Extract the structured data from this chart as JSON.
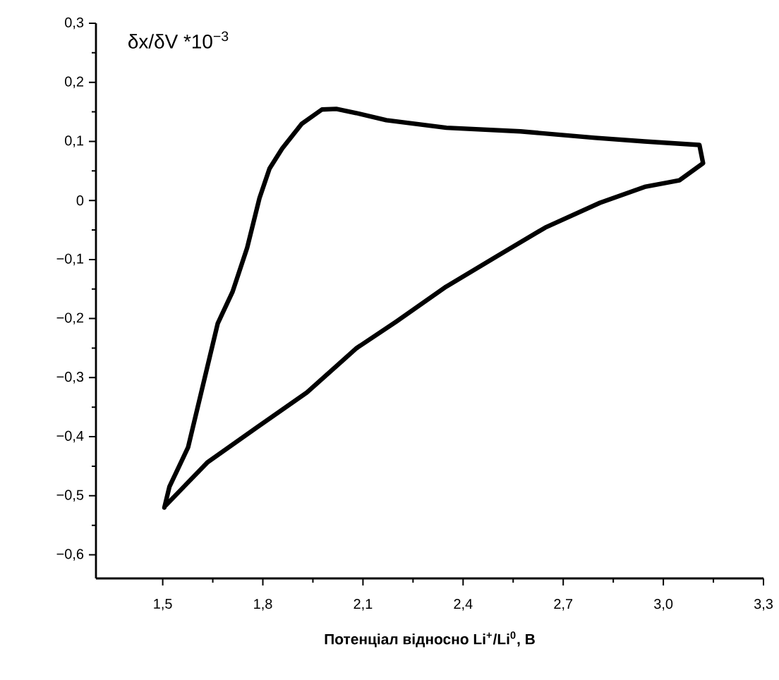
{
  "chart_data": {
    "type": "line",
    "xlabel": "Потенціал відносно Li$^{+}$/Li$^{0}$, B",
    "ylabel": "δx/δV *10$^{−3}$",
    "xlim": [
      1.3,
      3.3
    ],
    "ylim": [
      -0.64,
      0.3
    ],
    "xticks": [
      {
        "value": 1.5,
        "label": "1,5"
      },
      {
        "value": 1.8,
        "label": "1,8"
      },
      {
        "value": 2.1,
        "label": "2,1"
      },
      {
        "value": 2.4,
        "label": "2,4"
      },
      {
        "value": 2.7,
        "label": "2,7"
      },
      {
        "value": 3.0,
        "label": "3,0"
      },
      {
        "value": 3.3,
        "label": "3,3"
      }
    ],
    "yticks": [
      {
        "value": -0.6,
        "label": "−0,6"
      },
      {
        "value": -0.5,
        "label": "−0,5"
      },
      {
        "value": -0.4,
        "label": "−0,4"
      },
      {
        "value": -0.3,
        "label": "−0,3"
      },
      {
        "value": -0.2,
        "label": "−0,2"
      },
      {
        "value": -0.1,
        "label": "−0,1"
      },
      {
        "value": 0,
        "label": "0"
      },
      {
        "value": 0.1,
        "label": "0,1"
      },
      {
        "value": 0.2,
        "label": "0,2"
      },
      {
        "value": 0.3,
        "label": "0,3"
      }
    ],
    "marker": "none",
    "series": [
      {
        "color": "#000000",
        "x": [
          1.505,
          1.52,
          1.576,
          1.665,
          1.709,
          1.753,
          1.79,
          1.82,
          1.858,
          1.917,
          1.977,
          2.02,
          2.08,
          2.17,
          2.35,
          2.572,
          2.795,
          2.944,
          3.108,
          3.119,
          3.048,
          2.944,
          2.81,
          2.646,
          2.497,
          2.349,
          2.2,
          2.081,
          1.932,
          1.783,
          1.635,
          1.508
        ],
        "values": [
          -0.52,
          -0.485,
          -0.418,
          -0.208,
          -0.155,
          -0.08,
          0.004,
          0.054,
          0.088,
          0.13,
          0.154,
          0.155,
          0.148,
          0.136,
          0.123,
          0.117,
          0.106,
          0.1,
          0.094,
          0.063,
          0.034,
          0.023,
          -0.004,
          -0.046,
          -0.096,
          -0.146,
          -0.205,
          -0.25,
          -0.325,
          -0.384,
          -0.443,
          -0.517
        ]
      }
    ]
  }
}
